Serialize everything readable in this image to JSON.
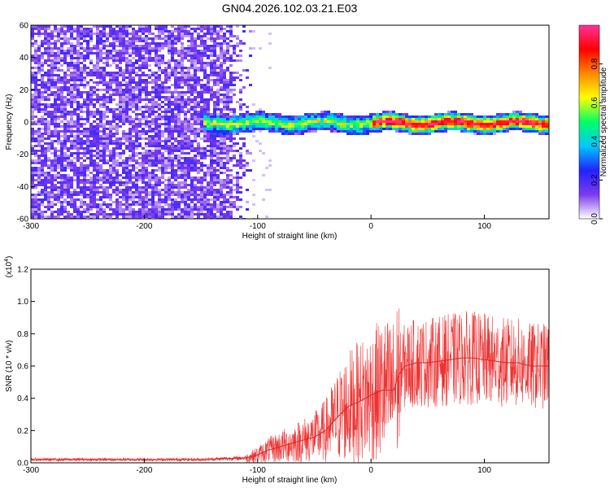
{
  "title": "GN04.2026.102.03.21.E03",
  "chart_data": [
    {
      "type": "heatmap",
      "xlabel": "Height of straight line (km)",
      "ylabel": "Frequency (Hz)",
      "xlim": [
        -300,
        157
      ],
      "ylim": [
        -60,
        60
      ],
      "xticks": [
        -300,
        -200,
        -100,
        0,
        100
      ],
      "yticks": [
        -60,
        -40,
        -20,
        0,
        20,
        40,
        60
      ],
      "colorbar": {
        "label": "Normalized spectral amplitude",
        "range": [
          0,
          1
        ],
        "ticks": [
          0.0,
          0.2,
          0.4,
          0.6,
          0.8
        ],
        "colormap": [
          "#ffffff",
          "#7c3aed",
          "#2222ff",
          "#00c8ff",
          "#00ff66",
          "#ffff00",
          "#ff8800",
          "#ff0000",
          "#ff3399"
        ]
      },
      "features": {
        "broadband_noise_region_km": [
          -300,
          -105
        ],
        "narrowband_signal_start_km": -150,
        "signal_center_frequency_hz": 0,
        "signal_halfwidth_hz": 6
      }
    },
    {
      "type": "line",
      "xlabel": "Height of straight line (km)",
      "ylabel": "SNR (10 * v/v)",
      "yscale_label": "(x10^4)",
      "xlim": [
        -300,
        157
      ],
      "ylim": [
        0,
        1.2
      ],
      "xticks": [
        -300,
        -200,
        -100,
        0,
        100
      ],
      "yticks": [
        0.0,
        0.2,
        0.4,
        0.6,
        0.8,
        1.0,
        1.2
      ],
      "color": "#ee3333",
      "series": [
        {
          "x": [
            -300,
            -250,
            -200,
            -150,
            -110,
            -100,
            -90,
            -80,
            -70,
            -60,
            -50,
            -40,
            -30,
            -20,
            -10,
            0,
            10,
            20,
            25,
            30,
            40,
            50,
            60,
            70,
            80,
            90,
            100,
            110,
            120,
            130,
            140,
            150,
            157
          ],
          "y": [
            0.02,
            0.02,
            0.02,
            0.02,
            0.03,
            0.05,
            0.08,
            0.1,
            0.12,
            0.14,
            0.16,
            0.2,
            0.28,
            0.35,
            0.38,
            0.42,
            0.45,
            0.45,
            0.55,
            0.6,
            0.62,
            0.62,
            0.63,
            0.64,
            0.65,
            0.65,
            0.64,
            0.63,
            0.62,
            0.62,
            0.6,
            0.6,
            0.6
          ]
        }
      ]
    }
  ]
}
